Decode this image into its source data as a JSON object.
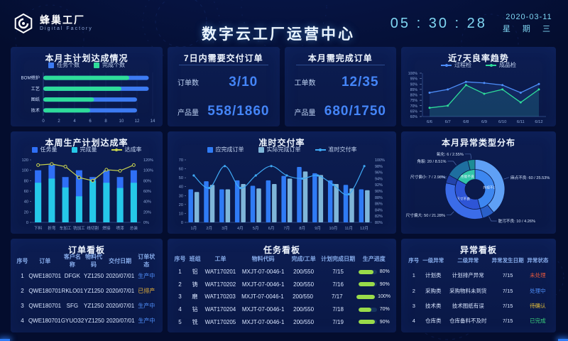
{
  "header": {
    "logo_title": "蜂巢工厂",
    "logo_subtitle": "Digital  Factory",
    "title": "数字云工厂运营中心",
    "time": "05 : 30 : 28",
    "date": "2020-03-11",
    "weekday": "星 期 三"
  },
  "colors": {
    "background": "#040D2E",
    "panel": "#0B1B4D",
    "accent_blue": "#3D7BF2",
    "cyan": "#25C8E8",
    "green": "#2EDC9A",
    "yellow_line": "#C9D44F",
    "light_bar": "#7FB6D9",
    "time_cyan": "#7FD6F2",
    "progress_green": "#9ADB4A",
    "axis_text": "#8FA8D8"
  },
  "status_colors": {
    "生产中": "#4D8DF8",
    "已排产": "#E8B339",
    "未处理": "#E4573D",
    "处理中": "#4D8DF8",
    "待确认": "#E8C23A",
    "已完成": "#3BD67E"
  },
  "panels": {
    "main_plan": {
      "title": "本月主计划达成情况"
    },
    "deliver_7d": {
      "title": "7日内需要交付订单",
      "rows": [
        {
          "label": "订单数",
          "value": "3/10"
        },
        {
          "label": "产品量",
          "value": "558/1860"
        }
      ]
    },
    "month_orders": {
      "title": "本月需完成订单",
      "rows": [
        {
          "label": "工单数",
          "value": "12/35"
        },
        {
          "label": "产品量",
          "value": "680/1750"
        }
      ]
    },
    "yield_trend": {
      "title": "近7天良率趋势"
    },
    "weekly_rate": {
      "title": "本周生产计划达成率"
    },
    "ontime": {
      "title": "准时交付率"
    },
    "anomaly_dist": {
      "title": "本月异常类型分布"
    },
    "order_board": {
      "title": "订单看板",
      "headers": [
        "序号",
        "订单",
        "客户名称",
        "物料代码",
        "交付日期",
        "订单状态"
      ],
      "rows": [
        {
          "cells": [
            "1",
            "QWE180701",
            "DFGK",
            "YZ1250",
            "2020/07/01",
            "生产中"
          ]
        },
        {
          "cells": [
            "2",
            "QWE180701",
            "RKLO01",
            "YZ1250",
            "2020/07/01",
            "已排产"
          ]
        },
        {
          "cells": [
            "3",
            "QWE180701",
            "SFG",
            "YZ1250",
            "2020/07/01",
            "生产中"
          ]
        },
        {
          "cells": [
            "4",
            "QWE180701",
            "GYUO32",
            "YZ1250",
            "2020/07/01",
            "生产中"
          ]
        }
      ]
    },
    "task_board": {
      "title": "任务看板",
      "headers": [
        "序号",
        "班组",
        "工单",
        "物料代码",
        "完成/工单",
        "计划完成日期",
        "生产进度"
      ],
      "rows": [
        {
          "cells": [
            "1",
            "铝",
            "WAT170201",
            "MXJT-07-0046-1",
            "200/550",
            "7/15"
          ],
          "progress": 80
        },
        {
          "cells": [
            "2",
            "铸",
            "WAT170202",
            "MXJT-07-0046-1",
            "200/550",
            "7/16"
          ],
          "progress": 90
        },
        {
          "cells": [
            "3",
            "磨",
            "WAT170203",
            "MXJT-07-0046-1",
            "200/550",
            "7/17"
          ],
          "progress": 100
        },
        {
          "cells": [
            "4",
            "钻",
            "WAT170204",
            "MXJT-07-0046-1",
            "200/550",
            "7/18"
          ],
          "progress": 70
        },
        {
          "cells": [
            "5",
            "铣",
            "WAT170205",
            "MXJT-07-0046-1",
            "200/550",
            "7/19"
          ],
          "progress": 90
        }
      ]
    },
    "anomaly_board": {
      "title": "异常看板",
      "headers": [
        "序号",
        "一级异常",
        "二级异常",
        "异常发生日期",
        "异常状态"
      ],
      "rows": [
        {
          "cells": [
            "1",
            "计划类",
            "计划排产异常",
            "7/15",
            "未处理"
          ]
        },
        {
          "cells": [
            "2",
            "采购类",
            "采购物料未到货",
            "7/15",
            "处理中"
          ]
        },
        {
          "cells": [
            "3",
            "技术类",
            "技术图纸有误",
            "7/15",
            "待确认"
          ]
        },
        {
          "cells": [
            "4",
            "仓库类",
            "仓库备料不及时",
            "7/15",
            "已完成"
          ]
        }
      ]
    }
  },
  "chart_data": [
    {
      "id": "main_plan",
      "type": "bar",
      "orientation": "horizontal",
      "title": "本月主计划达成情况",
      "categories": [
        "BOM维护",
        "工艺",
        "图纸",
        "技术"
      ],
      "series": [
        {
          "name": "任务个数",
          "color": "#3D7BF2",
          "values": [
            13.5,
            13.5,
            12,
            12
          ]
        },
        {
          "name": "完成个数",
          "color": "#2EDC9A",
          "values": [
            11,
            10,
            6.5,
            6
          ]
        }
      ],
      "overlay": true,
      "xlim": [
        0,
        14
      ],
      "xticks": [
        0,
        2,
        4,
        6,
        8,
        10,
        12,
        14
      ]
    },
    {
      "id": "yield_trend",
      "type": "line",
      "title": "近7天良率趋势",
      "x": [
        "6/6",
        "6/7",
        "6/8",
        "6/9",
        "6/10",
        "6/11",
        "6/12"
      ],
      "series": [
        {
          "name": "过程检",
          "color": "#4D8DF8",
          "values": [
            82,
            85,
            92,
            91,
            89,
            82,
            90
          ]
        },
        {
          "name": "成品检",
          "color": "#2EDC9A",
          "values": [
            68,
            70,
            89,
            81,
            85,
            73,
            85
          ]
        }
      ],
      "ylim": [
        60,
        100
      ],
      "ytick_step": 5,
      "unit": "%"
    },
    {
      "id": "weekly_rate",
      "type": "bar+line",
      "title": "本周生产计划达成率",
      "categories": [
        "下料",
        "折弯",
        "车加工",
        "铣加工",
        "线切割",
        "焊接",
        "喷漆",
        "总装"
      ],
      "bars": [
        {
          "name": "任务量",
          "color": "#2F6FF5",
          "values": [
            100,
            110,
            87,
            100,
            87,
            100,
            87,
            100
          ]
        },
        {
          "name": "完成量",
          "color": "#25C8E8",
          "values": [
            76,
            84,
            67,
            50,
            80,
            76,
            66,
            76
          ]
        }
      ],
      "line": {
        "name": "达成率",
        "color": "#C9D44F",
        "values": [
          110,
          112,
          107,
          86,
          80,
          101,
          99,
          110
        ],
        "smooth": false,
        "open_marker": true
      },
      "overlay": true,
      "ylim_left": [
        0,
        120
      ],
      "yticks_left": [
        0,
        20,
        40,
        60,
        80,
        100,
        120
      ],
      "ylim_right": [
        0,
        120
      ],
      "yticks_right": [
        0,
        20,
        40,
        60,
        80,
        100,
        120
      ],
      "right_unit": "%"
    },
    {
      "id": "ontime",
      "type": "bar+line",
      "title": "准时交付率",
      "categories": [
        "1月",
        "2月",
        "3月",
        "4月",
        "5月",
        "6月",
        "7月",
        "8月",
        "9月",
        "10月",
        "11月",
        "12月"
      ],
      "bars": [
        {
          "name": "应完成订单",
          "color": "#2F7BF5",
          "values": [
            37,
            46,
            37,
            47,
            41,
            47,
            52,
            62,
            55,
            47,
            42,
            37
          ]
        },
        {
          "name": "实际完成订单",
          "color": "#7FB6D9",
          "values": [
            34,
            42,
            37,
            43,
            38,
            43,
            49,
            57,
            53,
            43,
            38,
            36
          ]
        }
      ],
      "line": {
        "name": "准时交付率",
        "color": "#3FA9F5",
        "values": [
          95,
          91,
          98,
          91,
          95,
          98,
          95,
          94,
          95,
          92,
          89,
          98
        ],
        "smooth": true,
        "open_marker": false
      },
      "overlay": false,
      "ylim_left": [
        0,
        70
      ],
      "yticks_left": [
        0,
        10,
        20,
        30,
        40,
        50,
        60,
        70
      ],
      "ylim_right": [
        80,
        100
      ],
      "yticks_right": [
        80,
        82,
        84,
        86,
        88,
        90,
        92,
        94,
        96,
        98,
        100
      ],
      "right_unit": "%"
    },
    {
      "id": "anomaly_dist",
      "type": "sunburst",
      "title": "本月异常类型分布",
      "inner": [
        {
          "name": "外观不良",
          "color": "#3D87F0"
        },
        {
          "name": "尺寸不良",
          "color": "#2E55D6"
        },
        {
          "name": "性能不良",
          "color": "#32C5A8"
        }
      ],
      "outer": [
        {
          "name": "麻点不良",
          "parent": "外观不良",
          "value": 60,
          "pct": "25.53%",
          "color": "#5FA0F5"
        },
        {
          "name": "脏污不良",
          "parent": "外观不良",
          "value": 10,
          "pct": "4.26%",
          "color": "#2A60C8"
        },
        {
          "name": "尺寸偏大",
          "parent": "尺寸不良",
          "value": 50,
          "pct": "21.28%",
          "color": "#3B6CE8"
        },
        {
          "name": "尺寸偏小",
          "parent": "尺寸不良",
          "value": 7,
          "pct": "2.98%",
          "color": "#2344AC"
        },
        {
          "name": "角裂",
          "parent": "性能不良",
          "value": 20,
          "pct": "8.51%",
          "color": "#1E6FA0"
        },
        {
          "name": "氧化",
          "parent": "性能不良",
          "value": 6,
          "pct": "2.55%",
          "color": "#1C8C96"
        }
      ]
    }
  ]
}
